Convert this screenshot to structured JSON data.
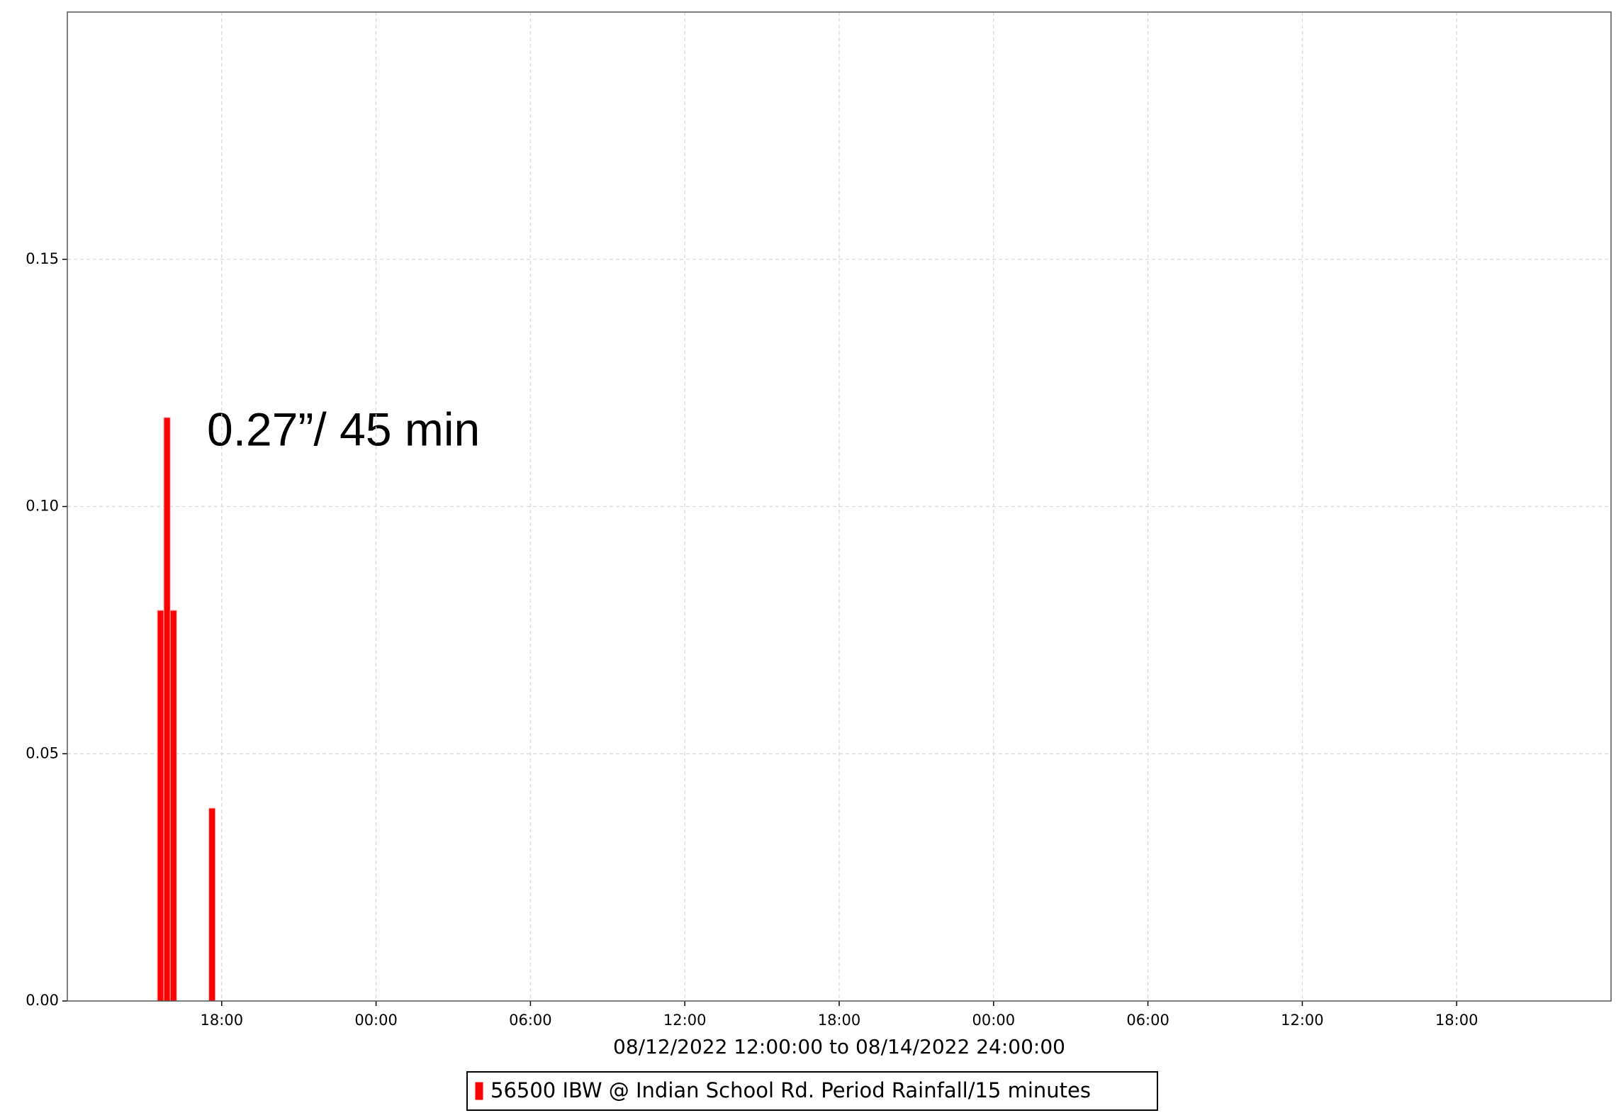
{
  "chart_data": {
    "type": "bar",
    "annotation": "0.27”/ 45 min",
    "x_label": "08/12/2022 12:00:00 to 08/14/2022 24:00:00",
    "series": [
      {
        "name": "56500 IBW @ Indian School Rd. Period Rainfall/15 minutes",
        "color": "#ff0000",
        "x": [
          3.5,
          3.75,
          4.0,
          5.5
        ],
        "values": [
          0.079,
          0.118,
          0.079,
          0.039
        ]
      }
    ],
    "bar_width": 0.25,
    "xlim": [
      0,
      60
    ],
    "xticks": [
      {
        "value": 6,
        "label": "18:00"
      },
      {
        "value": 12,
        "label": "00:00"
      },
      {
        "value": 18,
        "label": "06:00"
      },
      {
        "value": 24,
        "label": "12:00"
      },
      {
        "value": 30,
        "label": "18:00"
      },
      {
        "value": 36,
        "label": "00:00"
      },
      {
        "value": 42,
        "label": "06:00"
      },
      {
        "value": 48,
        "label": "12:00"
      },
      {
        "value": 54,
        "label": "18:00"
      }
    ],
    "ylim": [
      0,
      0.2
    ],
    "yticks": [
      {
        "value": 0,
        "label": "0.00"
      },
      {
        "value": 0.05,
        "label": "0.05"
      },
      {
        "value": 0.1,
        "label": "0.10"
      },
      {
        "value": 0.15,
        "label": "0.15"
      }
    ],
    "grid": true
  }
}
